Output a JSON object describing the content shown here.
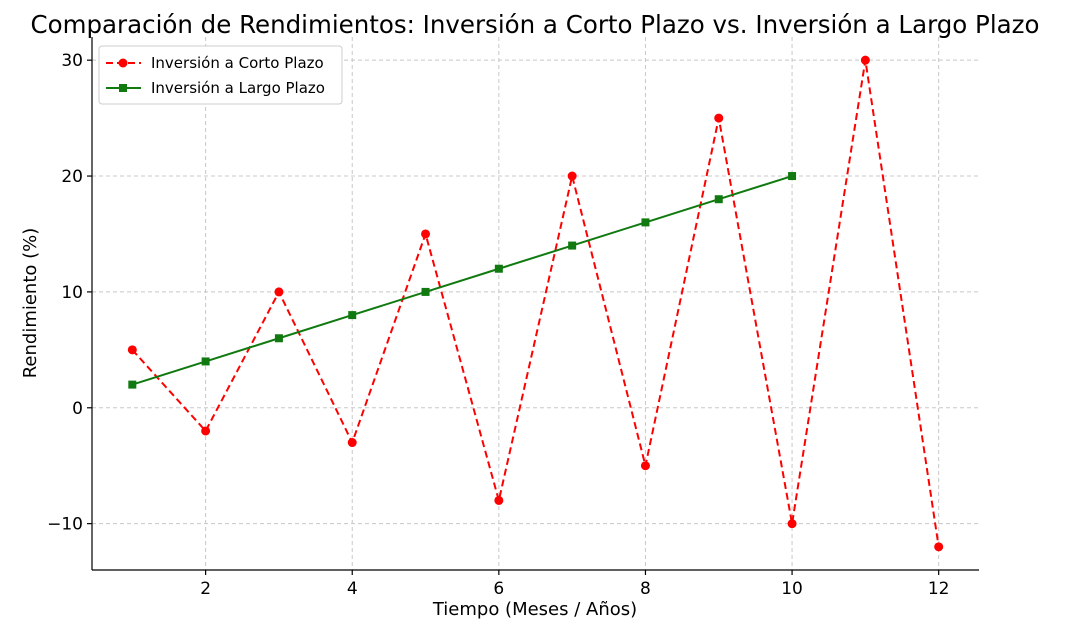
{
  "chart_data": {
    "type": "line",
    "title": "Comparación de Rendimientos: Inversión a Corto Plazo vs. Inversión a Largo Plazo",
    "xlabel": "Tiempo (Meses / Años)",
    "ylabel": "Rendimiento (%)",
    "xlim": [
      0.45,
      12.55
    ],
    "ylim": [
      -14,
      32
    ],
    "xticks": [
      2,
      4,
      6,
      8,
      10,
      12
    ],
    "yticks": [
      -10,
      0,
      10,
      20,
      30
    ],
    "ytick_labels": [
      "−10",
      "0",
      "10",
      "20",
      "30"
    ],
    "grid": true,
    "legend_position": "top-left",
    "series": [
      {
        "name": "Inversión a Corto Plazo",
        "color": "#ff0000",
        "line_style": "dashed",
        "marker": "circle",
        "x": [
          1,
          2,
          3,
          4,
          5,
          6,
          7,
          8,
          9,
          10,
          11,
          12
        ],
        "y": [
          5,
          -2,
          10,
          -3,
          15,
          -8,
          20,
          -5,
          25,
          -10,
          30,
          -12
        ]
      },
      {
        "name": "Inversión a Largo Plazo",
        "color": "#107a10",
        "line_style": "solid",
        "marker": "square",
        "x": [
          1,
          2,
          3,
          4,
          5,
          6,
          7,
          8,
          9,
          10
        ],
        "y": [
          2,
          4,
          6,
          8,
          10,
          12,
          14,
          16,
          18,
          20
        ]
      }
    ]
  }
}
